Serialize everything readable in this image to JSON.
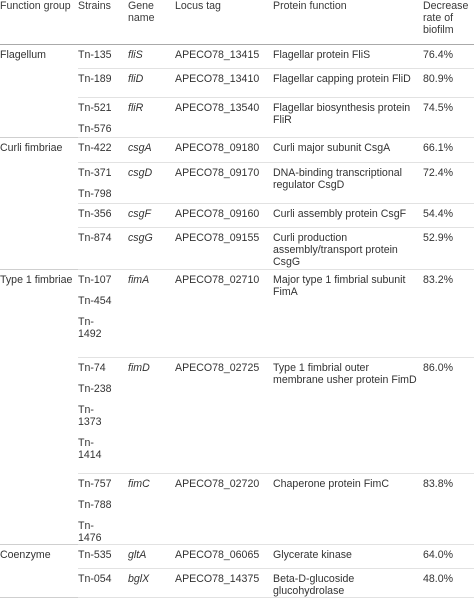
{
  "headers": {
    "function_group": "Function group",
    "strains": "Strains",
    "gene_name": "Gene name",
    "locus_tag": "Locus tag",
    "protein_function": "Protein function",
    "decrease_rate": "Decrease rate of biofilm"
  },
  "rows": [
    {
      "group": "Flagellum",
      "strains": [
        "Tn-135"
      ],
      "gene": "fliS",
      "locus": "APECO78_13415",
      "func": "Flagellar protein FliS",
      "rate": "76.4%"
    },
    {
      "group": "",
      "strains": [
        "Tn-189"
      ],
      "gene": "fliD",
      "locus": "APECO78_13410",
      "func": "Flagellar capping protein FliD",
      "rate": "80.9%"
    },
    {
      "group": "",
      "strains": [
        "Tn-521",
        "Tn-576"
      ],
      "gene": "fliR",
      "locus": "APECO78_13540",
      "func": "Flagellar biosynthesis protein FliR",
      "rate": "74.5%"
    },
    {
      "group": "Curli fimbriae",
      "strains": [
        "Tn-422"
      ],
      "gene": "csgA",
      "locus": "APECO78_09180",
      "func": "Curli major subunit CsgA",
      "rate": "66.1%"
    },
    {
      "group": "",
      "strains": [
        "Tn-371",
        "Tn-798"
      ],
      "gene": "csgD",
      "locus": "APECO78_09170",
      "func": "DNA-binding transcriptional regulator CsgD",
      "rate": "72.4%"
    },
    {
      "group": "",
      "strains": [
        "Tn-356"
      ],
      "gene": "csgF",
      "locus": "APECO78_09160",
      "func": "Curli assembly protein CsgF",
      "rate": "54.4%"
    },
    {
      "group": "",
      "strains": [
        "Tn-874"
      ],
      "gene": "csgG",
      "locus": "APECO78_09155",
      "func": "Curli production assembly/transport protein CsgG",
      "rate": "52.9%"
    },
    {
      "group": "Type 1 fimbriae",
      "strains": [
        "Tn-107",
        "Tn-454",
        "Tn-1492"
      ],
      "gene": "fimA",
      "locus": "APECO78_02710",
      "func": "Major type 1 fimbrial subunit FimA",
      "rate": "83.2%"
    },
    {
      "group": "",
      "strains": [
        "Tn-74",
        "Tn-238",
        "Tn-1373",
        "Tn-1414"
      ],
      "gene": "fimD",
      "locus": "APECO78_02725",
      "func": "Type 1 fimbrial outer membrane usher protein FimD",
      "rate": "86.0%"
    },
    {
      "group": "",
      "strains": [
        "Tn-757",
        "Tn-788",
        "Tn-1476"
      ],
      "gene": "fimC",
      "locus": "APECO78_02720",
      "func": "Chaperone protein FimC",
      "rate": "83.8%"
    },
    {
      "group": "Coenzyme",
      "strains": [
        "Tn-535"
      ],
      "gene": "gltA",
      "locus": "APECO78_06065",
      "func": "Glycerate kinase",
      "rate": "64.0%"
    },
    {
      "group": "",
      "strains": [
        "Tn-054"
      ],
      "gene": "bglX",
      "locus": "APECO78_14375",
      "func": "Beta-D-glucoside glucohydrolase",
      "rate": "48.0%"
    }
  ]
}
